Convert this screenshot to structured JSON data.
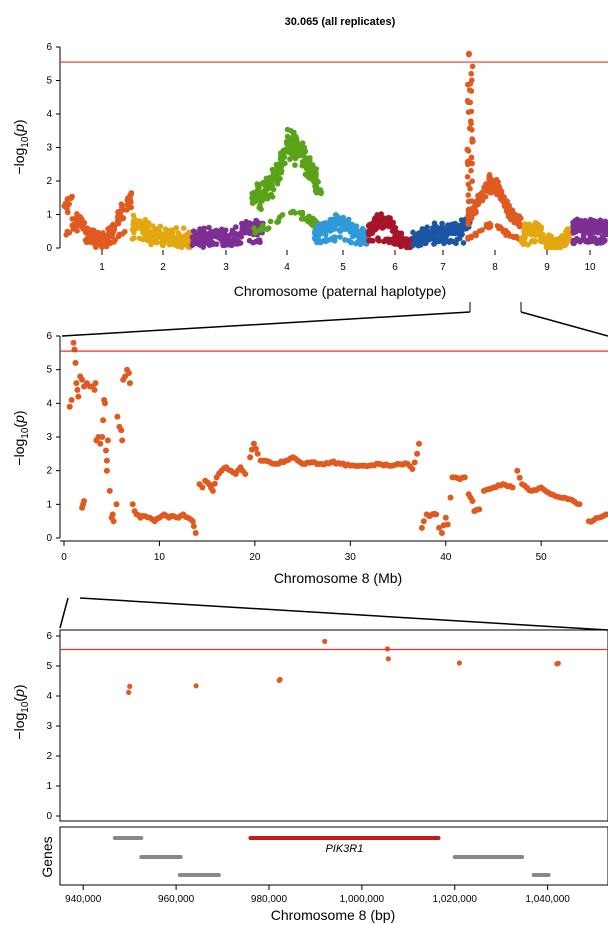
{
  "title": "30.065 (all replicates)",
  "threshold": 5.55,
  "threshold_color": "#e8302b",
  "chart_data": [
    {
      "type": "scatter",
      "id": "genome",
      "xlabel": "Chromosome (paternal haplotype)",
      "ylabel": "−log10(p)",
      "ylim": [
        0,
        6
      ],
      "yticks": [
        "0",
        "1",
        "2",
        "3",
        "4",
        "5",
        "6"
      ],
      "chromosomes": [
        {
          "label": "1",
          "color": "#e05a20"
        },
        {
          "label": "2",
          "color": "#e3a70f"
        },
        {
          "label": "3",
          "color": "#7d2f94"
        },
        {
          "label": "4",
          "color": "#5aa319"
        },
        {
          "label": "5",
          "color": "#2e9ad8"
        },
        {
          "label": "6",
          "color": "#a8152b"
        },
        {
          "label": "7",
          "color": "#1b55a3"
        },
        {
          "label": "8",
          "color": "#e05a20"
        },
        {
          "label": "9",
          "color": "#e3a70f"
        },
        {
          "label": "10",
          "color": "#7d2f94"
        }
      ],
      "peak_chromosome": "8",
      "peak_value": 5.8
    },
    {
      "type": "scatter",
      "id": "chr8",
      "xlabel": "Chromosome 8 (Mb)",
      "ylabel": "−log10(p)",
      "xlim": [
        0,
        57
      ],
      "ylim": [
        0,
        6
      ],
      "xticks": [
        "0",
        "10",
        "20",
        "30",
        "40",
        "50"
      ],
      "yticks": [
        "0",
        "1",
        "2",
        "3",
        "4",
        "5",
        "6"
      ],
      "color": "#e05a20",
      "points": [
        [
          0.6,
          3.9
        ],
        [
          0.8,
          4.1
        ],
        [
          1.0,
          5.8
        ],
        [
          1.1,
          5.6
        ],
        [
          1.2,
          5.2
        ],
        [
          1.3,
          4.6
        ],
        [
          1.4,
          4.4
        ],
        [
          1.5,
          4.2
        ],
        [
          1.7,
          4.8
        ],
        [
          1.9,
          4.7
        ],
        [
          2.1,
          4.5
        ],
        [
          2.4,
          4.6
        ],
        [
          2.7,
          4.5
        ],
        [
          3.0,
          4.5
        ],
        [
          3.2,
          4.4
        ],
        [
          3.3,
          4.6
        ],
        [
          1.9,
          0.9
        ],
        [
          2.0,
          1.0
        ],
        [
          2.1,
          1.1
        ],
        [
          3.4,
          2.9
        ],
        [
          3.6,
          3.0
        ],
        [
          3.8,
          2.8
        ],
        [
          4.0,
          3.0
        ],
        [
          4.1,
          3.5
        ],
        [
          4.2,
          4.1
        ],
        [
          4.3,
          4.0
        ],
        [
          4.4,
          2.6
        ],
        [
          4.5,
          2.3
        ],
        [
          4.5,
          2.0
        ],
        [
          4.6,
          2.9
        ],
        [
          4.8,
          1.4
        ],
        [
          5.0,
          0.6
        ],
        [
          5.1,
          0.7
        ],
        [
          5.2,
          0.5
        ],
        [
          5.5,
          1.0
        ],
        [
          5.6,
          3.6
        ],
        [
          5.8,
          3.3
        ],
        [
          6.0,
          3.2
        ],
        [
          6.1,
          2.9
        ],
        [
          6.2,
          4.7
        ],
        [
          6.4,
          4.8
        ],
        [
          6.6,
          5.0
        ],
        [
          6.8,
          4.9
        ],
        [
          6.9,
          4.6
        ],
        [
          7.2,
          1.0
        ],
        [
          7.4,
          0.8
        ],
        [
          7.6,
          0.7
        ],
        [
          8.0,
          0.6
        ],
        [
          8.5,
          0.65
        ],
        [
          9.0,
          0.6
        ],
        [
          9.5,
          0.5
        ],
        [
          10.0,
          0.6
        ],
        [
          10.5,
          0.7
        ],
        [
          11.0,
          0.6
        ],
        [
          11.5,
          0.65
        ],
        [
          12.0,
          0.6
        ],
        [
          12.5,
          0.7
        ],
        [
          13.0,
          0.6
        ],
        [
          13.5,
          0.5
        ],
        [
          13.6,
          0.35
        ],
        [
          13.8,
          0.15
        ],
        [
          14.2,
          1.6
        ],
        [
          14.5,
          1.5
        ],
        [
          14.8,
          1.7
        ],
        [
          15.2,
          1.6
        ],
        [
          15.6,
          1.4
        ],
        [
          16.0,
          1.8
        ],
        [
          16.5,
          2.0
        ],
        [
          17.0,
          2.1
        ],
        [
          17.5,
          2.0
        ],
        [
          18.0,
          1.9
        ],
        [
          18.5,
          2.1
        ],
        [
          19.0,
          1.9
        ],
        [
          19.5,
          2.4
        ],
        [
          19.9,
          2.8
        ],
        [
          20.3,
          2.5
        ],
        [
          20.6,
          2.3
        ],
        [
          21.0,
          2.3
        ],
        [
          22.0,
          2.2
        ],
        [
          23.0,
          2.25
        ],
        [
          24.0,
          2.4
        ],
        [
          25.0,
          2.2
        ],
        [
          26.0,
          2.25
        ],
        [
          27.0,
          2.2
        ],
        [
          28.0,
          2.25
        ],
        [
          29.0,
          2.2
        ],
        [
          30.0,
          2.15
        ],
        [
          31.0,
          2.15
        ],
        [
          32.0,
          2.15
        ],
        [
          33.0,
          2.2
        ],
        [
          34.0,
          2.15
        ],
        [
          35.0,
          2.2
        ],
        [
          36.0,
          2.2
        ],
        [
          36.5,
          2.05
        ],
        [
          37.0,
          2.5
        ],
        [
          37.2,
          2.8
        ],
        [
          37.5,
          0.3
        ],
        [
          37.7,
          0.5
        ],
        [
          38.0,
          0.7
        ],
        [
          38.3,
          0.65
        ],
        [
          38.6,
          0.7
        ],
        [
          39.0,
          0.7
        ],
        [
          39.3,
          0.3
        ],
        [
          39.6,
          0.15
        ],
        [
          40.0,
          0.6
        ],
        [
          40.2,
          0.4
        ],
        [
          40.5,
          1.2
        ],
        [
          40.7,
          1.8
        ],
        [
          41.0,
          1.8
        ],
        [
          41.5,
          1.75
        ],
        [
          42.0,
          1.8
        ],
        [
          42.4,
          1.3
        ],
        [
          42.6,
          1.2
        ],
        [
          42.8,
          1.1
        ],
        [
          43.0,
          0.8
        ],
        [
          43.5,
          0.85
        ],
        [
          44.0,
          1.4
        ],
        [
          45.0,
          1.5
        ],
        [
          46.0,
          1.6
        ],
        [
          47.0,
          1.5
        ],
        [
          47.5,
          2.0
        ],
        [
          48.0,
          1.6
        ],
        [
          49.0,
          1.4
        ],
        [
          50.0,
          1.5
        ],
        [
          51.0,
          1.3
        ],
        [
          52.0,
          1.2
        ],
        [
          53.0,
          1.15
        ],
        [
          54.0,
          1.0
        ],
        [
          55.0,
          0.5
        ],
        [
          56.0,
          0.6
        ],
        [
          56.8,
          0.7
        ]
      ]
    },
    {
      "type": "scatter",
      "id": "locus",
      "xlabel": "Chromosome 8 (bp)",
      "ylabel": "−log10(p)",
      "xlim": [
        935000,
        1053000
      ],
      "ylim": [
        0,
        6.2
      ],
      "xticks": [
        940000,
        960000,
        980000,
        1000000,
        1020000,
        1040000
      ],
      "xtick_labels": [
        "940,000",
        "960,000",
        "980,000",
        "1,000,000",
        "1,020,000",
        "1,040,000"
      ],
      "yticks": [
        "0",
        "1",
        "2",
        "3",
        "4",
        "5",
        "6"
      ],
      "color": "#e05a20",
      "points": [
        [
          949800,
          4.12
        ],
        [
          950000,
          4.32
        ],
        [
          964300,
          4.34
        ],
        [
          982200,
          4.52
        ],
        [
          982400,
          4.55
        ],
        [
          992000,
          5.82
        ],
        [
          1005500,
          5.57
        ],
        [
          1005700,
          5.24
        ],
        [
          1021000,
          5.1
        ],
        [
          1042000,
          5.07
        ],
        [
          1042300,
          5.09
        ]
      ]
    }
  ],
  "genes": {
    "label": "Genes",
    "highlight": "PIK3R1",
    "gray_color": "#888888",
    "highlight_color": "#c41a1a",
    "items": [
      {
        "start": 946800,
        "end": 952500,
        "row": 0,
        "highlight": false
      },
      {
        "start": 952500,
        "end": 961000,
        "row": 1,
        "highlight": false
      },
      {
        "start": 960800,
        "end": 969200,
        "row": 2,
        "highlight": false
      },
      {
        "start": 976000,
        "end": 1016500,
        "row": 0,
        "highlight": true
      },
      {
        "start": 1020000,
        "end": 1034500,
        "row": 1,
        "highlight": false
      },
      {
        "start": 1037000,
        "end": 1040200,
        "row": 2,
        "highlight": false
      }
    ]
  }
}
